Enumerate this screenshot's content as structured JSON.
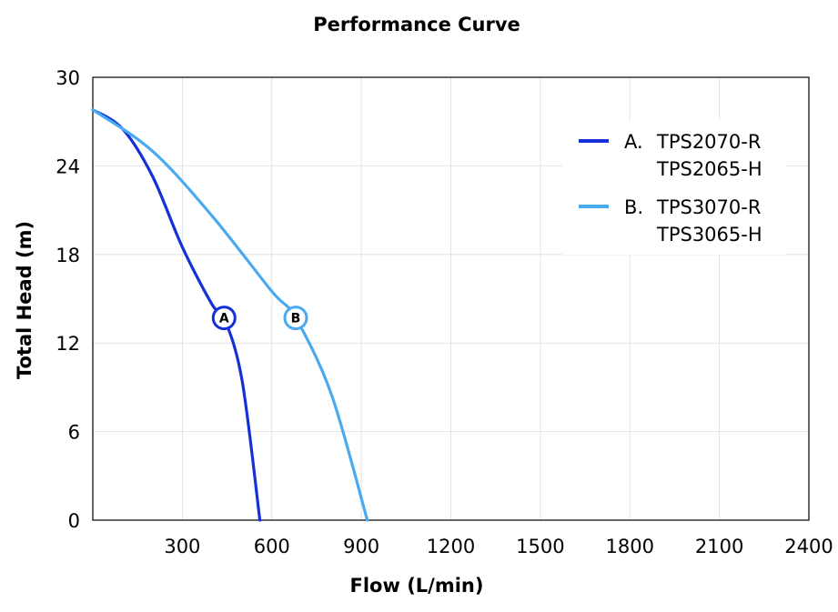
{
  "chart_data": {
    "type": "line",
    "title": "Performance Curve",
    "xlabel": "Flow (L/min)",
    "ylabel": "Total Head (m)",
    "xlim": [
      0,
      2400
    ],
    "ylim": [
      0,
      30
    ],
    "x_ticks": [
      "300",
      "600",
      "900",
      "1200",
      "1500",
      "1800",
      "2100",
      "2400"
    ],
    "y_ticks": [
      "0",
      "6",
      "12",
      "18",
      "24",
      "30"
    ],
    "grid": true,
    "legend_position": "top-right",
    "series": [
      {
        "marker": "A",
        "legend_prefix": "A.",
        "legend_lines": [
          "TPS2070-R",
          "TPS2065-H"
        ],
        "color": "#1530d8",
        "x": [
          0,
          100,
          200,
          300,
          400,
          440,
          500,
          560
        ],
        "y": [
          27.8,
          26.5,
          23.3,
          18.5,
          14.6,
          13.7,
          9.5,
          0
        ],
        "marker_point": [
          440,
          13.7
        ]
      },
      {
        "marker": "B",
        "legend_prefix": "B.",
        "legend_lines": [
          "TPS3070-R",
          "TPS3065-H"
        ],
        "color": "#4aaaf0",
        "x": [
          0,
          200,
          400,
          600,
          680,
          800,
          920
        ],
        "y": [
          27.8,
          25,
          20.6,
          15.5,
          13.7,
          8.5,
          0
        ],
        "marker_point": [
          680,
          13.7
        ]
      }
    ]
  }
}
